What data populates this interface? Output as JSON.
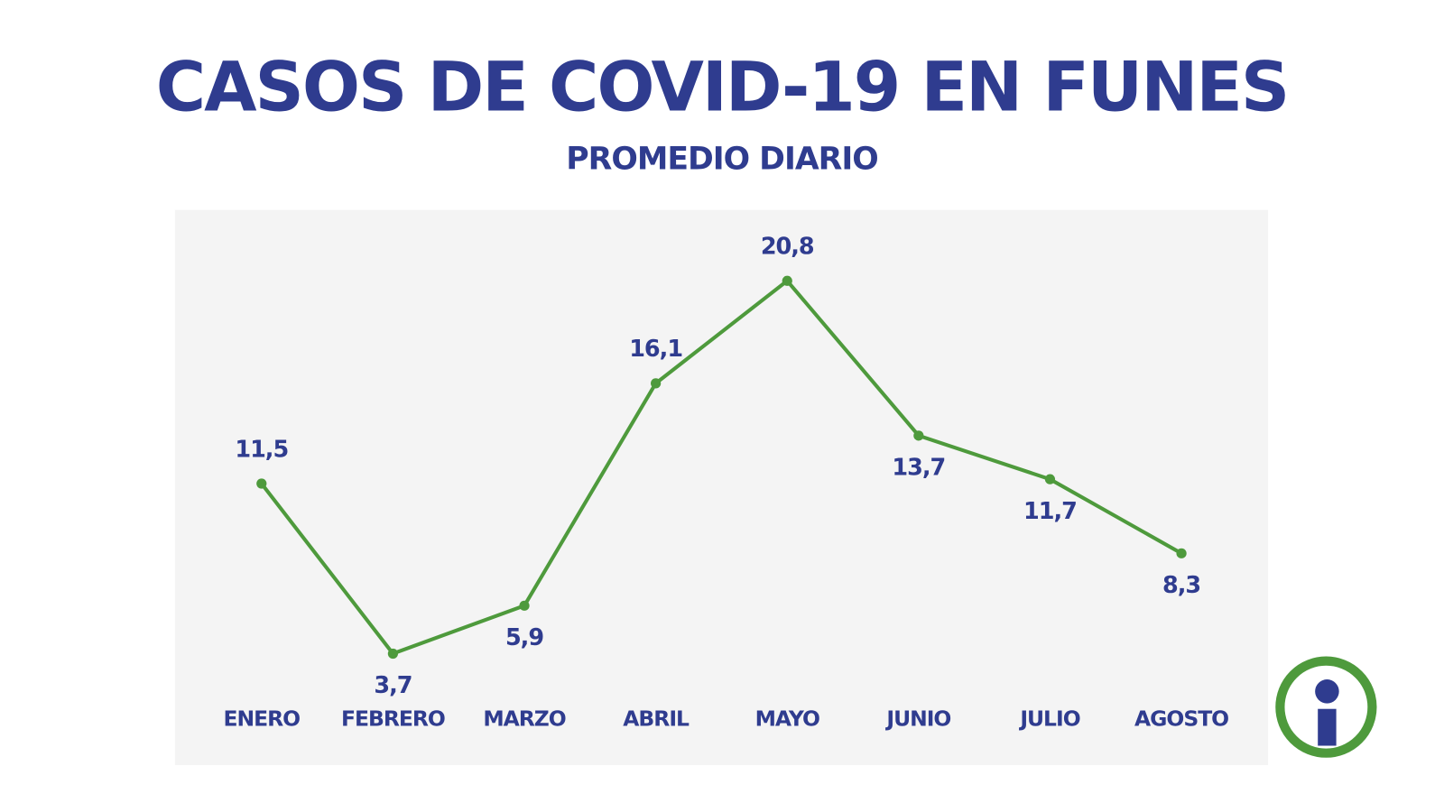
{
  "chart_data": {
    "type": "line",
    "title": "CASOS DE COVID-19 EN FUNES",
    "subtitle": "PROMEDIO DIARIO",
    "categories": [
      "ENERO",
      "FEBRERO",
      "MARZO",
      "ABRIL",
      "MAYO",
      "JUNIO",
      "JULIO",
      "AGOSTO"
    ],
    "values": [
      11.5,
      3.7,
      5.9,
      16.1,
      20.8,
      13.7,
      11.7,
      8.3
    ],
    "value_labels": [
      "11,5",
      "3,7",
      "5,9",
      "16,1",
      "20,8",
      "13,7",
      "11,7",
      "8,3"
    ],
    "color": "#4e9a3c"
  }
}
